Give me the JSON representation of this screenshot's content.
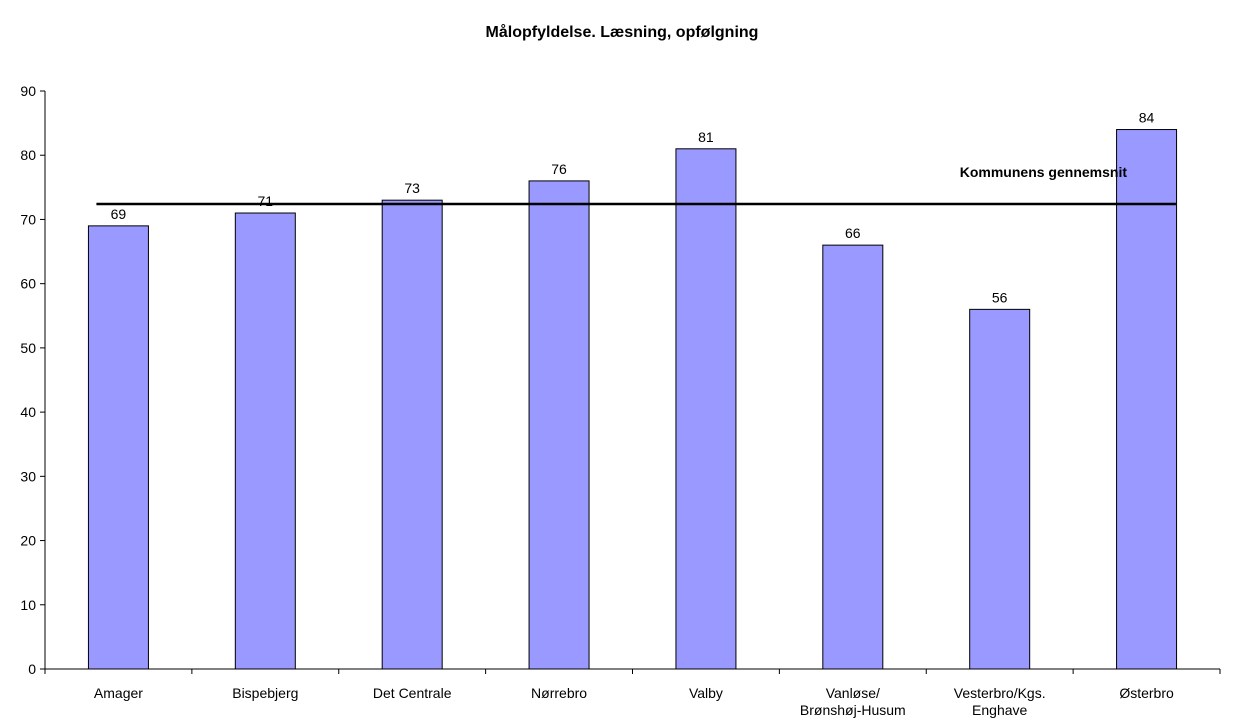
{
  "chart_data": {
    "type": "bar",
    "title": "Målopfyldelse. Læsning, opfølgning",
    "categories": [
      "Amager",
      "Bispebjerg",
      "Det Centrale",
      "Nørrebro",
      "Valby",
      "Vanløse/\nBrønshøj-Husum",
      "Vesterbro/Kgs.\nEnghave",
      "Østerbro"
    ],
    "values": [
      69,
      71,
      73,
      76,
      81,
      66,
      56,
      84
    ],
    "color": "#9999ff",
    "ylim": [
      0,
      90
    ],
    "yticks": [
      0,
      10,
      20,
      30,
      40,
      50,
      60,
      70,
      80,
      90
    ],
    "grid": false,
    "reference_line": {
      "label": "Kommunens gennemsnit",
      "value": 72.4
    }
  }
}
